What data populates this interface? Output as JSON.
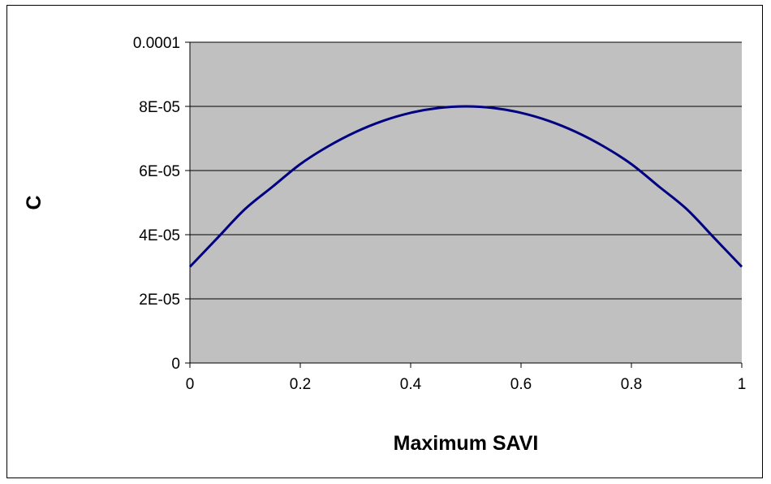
{
  "chart_data": {
    "type": "line",
    "title": "",
    "xlabel": "Maximum SAVI",
    "ylabel": "C",
    "xlim": [
      0,
      1
    ],
    "ylim": [
      0,
      0.0001
    ],
    "x_ticks": [
      {
        "value": 0,
        "label": "0"
      },
      {
        "value": 0.2,
        "label": "0.2"
      },
      {
        "value": 0.4,
        "label": "0.4"
      },
      {
        "value": 0.6,
        "label": "0.6"
      },
      {
        "value": 0.8,
        "label": "0.8"
      },
      {
        "value": 1,
        "label": "1"
      }
    ],
    "y_ticks": [
      {
        "value": 0,
        "label": "0"
      },
      {
        "value": 2e-05,
        "label": "2E-05"
      },
      {
        "value": 4e-05,
        "label": "4E-05"
      },
      {
        "value": 6e-05,
        "label": "6E-05"
      },
      {
        "value": 8e-05,
        "label": "8E-05"
      },
      {
        "value": 0.0001,
        "label": "0.0001"
      }
    ],
    "grid": "horizontal",
    "legend": "none",
    "plot_background": "#c0c0c0",
    "line_color": "#000080",
    "series": [
      {
        "x": [
          0,
          0.05,
          0.1,
          0.15,
          0.2,
          0.25,
          0.3,
          0.35,
          0.4,
          0.45,
          0.5,
          0.55,
          0.6,
          0.65,
          0.7,
          0.75,
          0.8,
          0.85,
          0.9,
          0.95,
          1
        ],
        "values": [
          3e-05,
          3.9e-05,
          4.8e-05,
          5.5e-05,
          6.2e-05,
          6.75e-05,
          7.2e-05,
          7.55e-05,
          7.8e-05,
          7.95e-05,
          8e-05,
          7.95e-05,
          7.8e-05,
          7.55e-05,
          7.2e-05,
          6.75e-05,
          6.2e-05,
          5.5e-05,
          4.8e-05,
          3.9e-05,
          3e-05
        ]
      }
    ]
  }
}
